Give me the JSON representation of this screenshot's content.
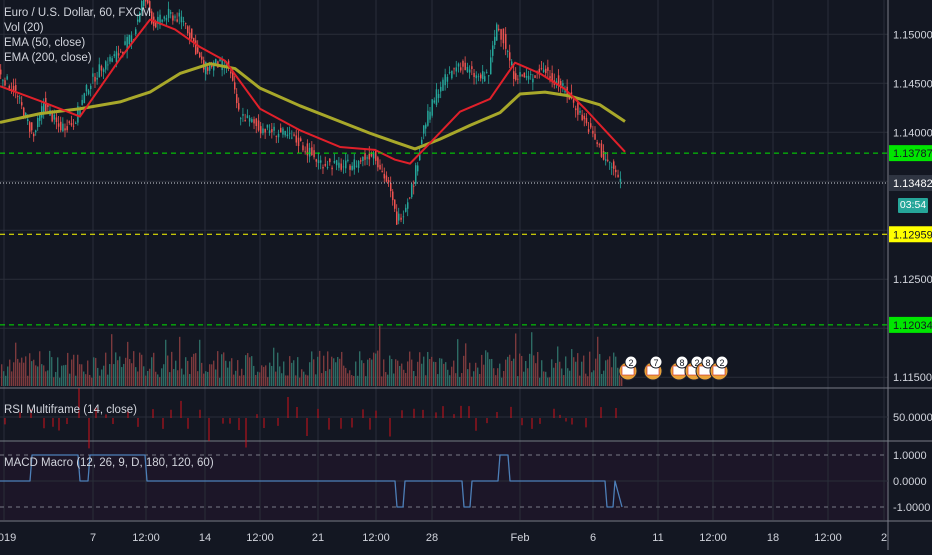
{
  "header": {
    "title": "Euro / U.S. Dollar, 60, FXCM",
    "indicators": [
      "Vol (20)",
      "EMA (50, close)",
      "EMA (200, close)"
    ]
  },
  "countdown": "03:54",
  "colors": {
    "background": "#131722",
    "grid": "#2a2e39",
    "ema50": "#e0202a",
    "ema200": "#a8a82a",
    "candle_up": "#26a69a",
    "candle_down": "#ef5350",
    "vol_up": "#2d6b64",
    "vol_down": "#7c3a3d",
    "level_green": "#00e600",
    "level_yellow": "#ffff00",
    "level_white": "#d1d4dc",
    "rsi": "#d0121b",
    "macd": "#4d7fb8"
  },
  "chart_data": [
    {
      "type": "line",
      "name": "price-pane",
      "title": "Euro / U.S. Dollar, 60, FXCM",
      "ylim": [
        1.114,
        1.1535
      ],
      "y_ticks": [
        "1.15000",
        "1.14500",
        "1.14000",
        "1.13500",
        "1.13000",
        "1.12500",
        "1.12000",
        "1.11500"
      ],
      "y_tick_values": [
        1.15,
        1.145,
        1.14,
        1.135,
        1.13,
        1.125,
        1.12,
        1.115
      ],
      "x_ticks": [
        "2019",
        "7",
        "12:00",
        "14",
        "12:00",
        "21",
        "12:00",
        "28",
        "Feb",
        "6",
        "11",
        "12:00",
        "18",
        "12:00",
        "2"
      ],
      "x_tick_bar": [
        4,
        93,
        146,
        205,
        260,
        318,
        376,
        432,
        520,
        593,
        658,
        713,
        773,
        828,
        884
      ],
      "price_levels": [
        {
          "label": "1.13787",
          "value": 1.13787,
          "style": "dashed",
          "color": "green",
          "badge": true
        },
        {
          "label": "1.13482",
          "value": 1.13482,
          "style": "dotted",
          "color": "white",
          "badge": true
        },
        {
          "label": "1.12959",
          "value": 1.12959,
          "style": "dashed",
          "color": "yellow",
          "badge": true
        },
        {
          "label": "1.12034",
          "value": 1.12034,
          "style": "dashed",
          "color": "green",
          "badge": true
        }
      ],
      "series": [
        {
          "name": "EMA (50, close)",
          "x": [
            0,
            40,
            80,
            120,
            150,
            175,
            200,
            225,
            260,
            300,
            340,
            375,
            395,
            410,
            430,
            460,
            490,
            515,
            540,
            565,
            585,
            605,
            625
          ],
          "values": [
            1.1447,
            1.1432,
            1.1416,
            1.1475,
            1.1515,
            1.1505,
            1.1487,
            1.1473,
            1.1424,
            1.1402,
            1.1385,
            1.1382,
            1.1372,
            1.1368,
            1.1389,
            1.1421,
            1.1434,
            1.1471,
            1.146,
            1.1444,
            1.1424,
            1.1402,
            1.138
          ]
        },
        {
          "name": "EMA (200, close)",
          "x": [
            0,
            40,
            80,
            120,
            150,
            180,
            210,
            235,
            260,
            300,
            340,
            370,
            395,
            415,
            440,
            470,
            500,
            520,
            545,
            570,
            600,
            625
          ],
          "values": [
            1.141,
            1.1419,
            1.1424,
            1.1431,
            1.1441,
            1.146,
            1.147,
            1.1465,
            1.1445,
            1.1427,
            1.1411,
            1.1399,
            1.139,
            1.1383,
            1.1393,
            1.1407,
            1.142,
            1.1439,
            1.1441,
            1.1437,
            1.1428,
            1.1411
          ]
        },
        {
          "name": "price",
          "x": [
            0,
            15,
            25,
            35,
            45,
            60,
            75,
            90,
            105,
            120,
            135,
            145,
            155,
            170,
            185,
            195,
            205,
            215,
            230,
            240,
            260,
            280,
            300,
            320,
            345,
            360,
            375,
            390,
            398,
            405,
            415,
            425,
            440,
            460,
            480,
            490,
            498,
            505,
            515,
            530,
            545,
            560,
            575,
            590,
            605,
            615,
            622
          ],
          "values": [
            1.146,
            1.1445,
            1.142,
            1.1395,
            1.143,
            1.1405,
            1.141,
            1.1448,
            1.147,
            1.148,
            1.15,
            1.154,
            1.151,
            1.152,
            1.1515,
            1.149,
            1.1465,
            1.147,
            1.1467,
            1.142,
            1.1405,
            1.14,
            1.139,
            1.137,
            1.1365,
            1.137,
            1.138,
            1.1345,
            1.131,
            1.132,
            1.135,
            1.1405,
            1.1445,
            1.147,
            1.1455,
            1.146,
            1.151,
            1.1495,
            1.146,
            1.1455,
            1.1465,
            1.145,
            1.143,
            1.1405,
            1.1375,
            1.1362,
            1.135
          ]
        }
      ]
    },
    {
      "type": "bar",
      "name": "volume-pane",
      "title": "Vol (20)",
      "events": [
        "2",
        "7",
        "8",
        "2",
        "8",
        "2"
      ]
    },
    {
      "type": "line",
      "name": "rsi-pane",
      "title": "RSI Multiframe (14, close)",
      "y_ticks": [
        "50.0000"
      ],
      "y_tick_values": [
        50
      ]
    },
    {
      "type": "line",
      "name": "macd-pane",
      "title": "MACD Macro (12, 26, 9, D, 180, 120, 60)",
      "ylim": [
        -1.15,
        1.15
      ],
      "y_ticks": [
        "1.0000",
        "0.0000",
        "-1.0000"
      ],
      "y_tick_values": [
        1,
        0,
        -1
      ],
      "series": [
        {
          "name": "MACD Macro",
          "x": [
            0,
            30,
            32,
            78,
            80,
            88,
            90,
            145,
            147,
            158,
            160,
            395,
            397,
            403,
            405,
            462,
            464,
            470,
            472,
            498,
            500,
            508,
            510,
            605,
            607,
            613,
            615,
            622
          ],
          "values": [
            0,
            0,
            1,
            1,
            0,
            0,
            1,
            1,
            0,
            0,
            0,
            0,
            -1,
            -1,
            0,
            0,
            -1,
            -1,
            0,
            0,
            1,
            1,
            0,
            0,
            -1,
            -1,
            0,
            -1
          ]
        }
      ]
    }
  ]
}
